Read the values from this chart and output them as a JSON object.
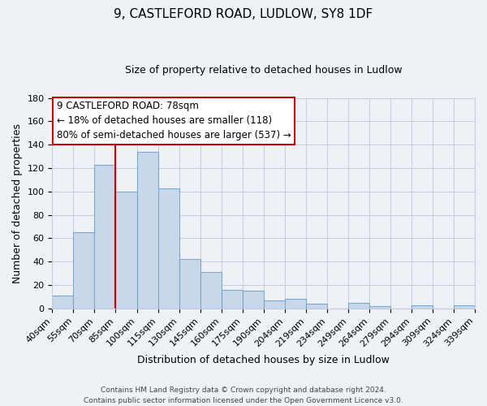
{
  "title": "9, CASTLEFORD ROAD, LUDLOW, SY8 1DF",
  "subtitle": "Size of property relative to detached houses in Ludlow",
  "xlabel": "Distribution of detached houses by size in Ludlow",
  "ylabel": "Number of detached properties",
  "bar_labels": [
    "40sqm",
    "55sqm",
    "70sqm",
    "85sqm",
    "100sqm",
    "115sqm",
    "130sqm",
    "145sqm",
    "160sqm",
    "175sqm",
    "190sqm",
    "204sqm",
    "219sqm",
    "234sqm",
    "249sqm",
    "264sqm",
    "279sqm",
    "294sqm",
    "309sqm",
    "324sqm",
    "339sqm"
  ],
  "bar_values": [
    11,
    65,
    123,
    100,
    134,
    103,
    42,
    31,
    16,
    15,
    7,
    8,
    4,
    0,
    5,
    2,
    0,
    3,
    0,
    3
  ],
  "bar_color": "#c8d8ea",
  "bar_edge_color": "#7aa8cc",
  "vline_color": "#cc0000",
  "annotation_line1": "9 CASTLEFORD ROAD: 78sqm",
  "annotation_line2": "← 18% of detached houses are smaller (118)",
  "annotation_line3": "80% of semi-detached houses are larger (537) →",
  "annotation_box_color": "#ffffff",
  "annotation_box_edge": "#cc0000",
  "ylim": [
    0,
    180
  ],
  "yticks": [
    0,
    20,
    40,
    60,
    80,
    100,
    120,
    140,
    160,
    180
  ],
  "footer_line1": "Contains HM Land Registry data © Crown copyright and database right 2024.",
  "footer_line2": "Contains public sector information licensed under the Open Government Licence v3.0.",
  "bg_color": "#eef2f7",
  "plot_bg_color": "#eef2f7",
  "grid_color": "#c5cdd8",
  "title_fontsize": 11,
  "subtitle_fontsize": 9,
  "ylabel_fontsize": 9,
  "xlabel_fontsize": 9,
  "tick_fontsize": 8,
  "annotation_fontsize": 8.5,
  "footer_fontsize": 6.5
}
